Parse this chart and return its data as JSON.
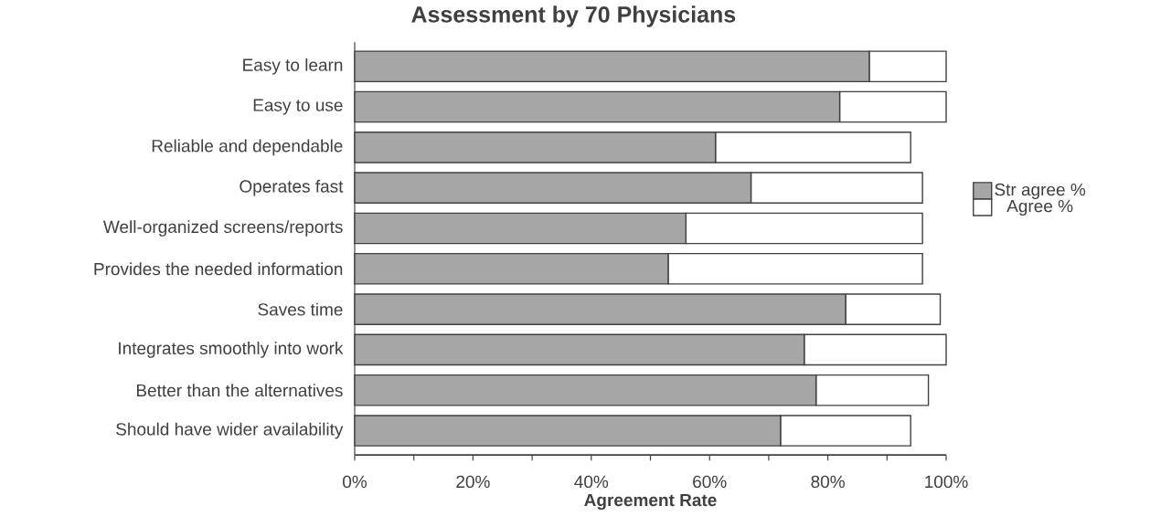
{
  "chart_data": {
    "type": "bar",
    "orientation": "horizontal",
    "stacked": true,
    "title": "Assessment by 70 Physicians",
    "xlabel": "Agreement Rate",
    "categories": [
      "Easy to learn",
      "Easy to use",
      "Reliable and dependable",
      "Operates fast",
      "Well-organized screens/reports",
      "Provides the needed information",
      "Saves time",
      "Integrates smoothly into work",
      "Better than the alternatives",
      "Should have wider availability"
    ],
    "series": [
      {
        "name": "Str agree %",
        "color": "#a6a6a6",
        "values": [
          87,
          82,
          61,
          67,
          56,
          53,
          83,
          76,
          78,
          72
        ]
      },
      {
        "name": "Agree %",
        "color": "#ffffff",
        "values": [
          13,
          18,
          33,
          29,
          40,
          43,
          16,
          24,
          19,
          22
        ]
      }
    ],
    "xlim": [
      0,
      100
    ],
    "xticks": [
      {
        "value": 0,
        "label": "0%"
      },
      {
        "value": 10,
        "label": null
      },
      {
        "value": 20,
        "label": "20%"
      },
      {
        "value": 30,
        "label": null
      },
      {
        "value": 40,
        "label": "40%"
      },
      {
        "value": 50,
        "label": null
      },
      {
        "value": 60,
        "label": "60%"
      },
      {
        "value": 70,
        "label": null
      },
      {
        "value": 80,
        "label": "80%"
      },
      {
        "value": 90,
        "label": null
      },
      {
        "value": 100,
        "label": "100%"
      }
    ],
    "legend": "right"
  }
}
